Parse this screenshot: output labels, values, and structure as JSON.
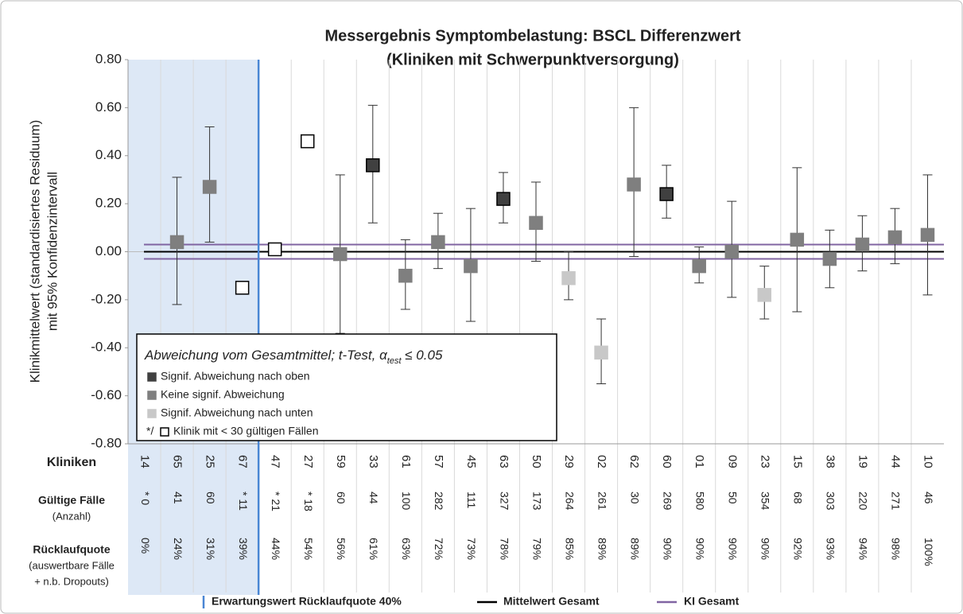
{
  "chart_data": {
    "type": "errorbar",
    "title": "Messergebnis Symptombelastung: BSCL Differenzwert",
    "subtitle": "(Kliniken mit Schwerpunktversorgung)",
    "y_label": [
      "Klinikmittelwert (standardisiertes Residuum)",
      "mit 95% Konfidenzintervall"
    ],
    "ylim": [
      -0.8,
      0.8
    ],
    "yticks": [
      {
        "value": -0.8,
        "label": "-0.80"
      },
      {
        "value": -0.6,
        "label": "-0.60"
      },
      {
        "value": -0.4,
        "label": "-0.40"
      },
      {
        "value": -0.2,
        "label": "-0.20"
      },
      {
        "value": 0,
        "label": "0.00"
      },
      {
        "value": 0.2,
        "label": "0.20"
      },
      {
        "value": 0.4,
        "label": "0.40"
      },
      {
        "value": 0.6,
        "label": "0.60"
      },
      {
        "value": 0.8,
        "label": "0.80"
      }
    ],
    "grid": true,
    "row_headers": {
      "clinics": "Kliniken",
      "cases": [
        "Gültige Fälle",
        "(Anzahl)"
      ],
      "rate": [
        "Rücklaufquote",
        "(auswertbare Fälle",
        "+ n.b. Dropouts)"
      ]
    },
    "categories": [
      "14",
      "65",
      "25",
      "67",
      "47",
      "27",
      "59",
      "33",
      "61",
      "57",
      "45",
      "63",
      "50",
      "29",
      "02",
      "62",
      "60",
      "01",
      "09",
      "23",
      "15",
      "38",
      "19",
      "44",
      "10"
    ],
    "cases": [
      "* 0",
      "41",
      "60",
      "* 11",
      "* 21",
      "* 18",
      "60",
      "44",
      "100",
      "282",
      "111",
      "327",
      "173",
      "264",
      "261",
      "30",
      "269",
      "580",
      "50",
      "354",
      "68",
      "303",
      "220",
      "271",
      "46"
    ],
    "rates": [
      "0%",
      "24%",
      "31%",
      "39%",
      "44%",
      "54%",
      "56%",
      "61%",
      "63%",
      "72%",
      "73%",
      "78%",
      "79%",
      "85%",
      "89%",
      "89%",
      "90%",
      "90%",
      "90%",
      "90%",
      "92%",
      "93%",
      "94%",
      "98%",
      "100%"
    ],
    "legend_title": {
      "text": "Abweichung vom Gesamtmittel;  t-Test, α",
      "sub": "test",
      "tail": " ≤ 0.05"
    },
    "legend_prefix": "*/",
    "series": [
      {
        "name": "Signif. Abweichung nach oben",
        "color": "#404040",
        "values": [
          null,
          null,
          null,
          null,
          null,
          null,
          null,
          0.36,
          null,
          null,
          null,
          0.22,
          null,
          null,
          null,
          null,
          0.24,
          null,
          null,
          null,
          null,
          null,
          null,
          null,
          null
        ],
        "low": [
          null,
          null,
          null,
          null,
          null,
          null,
          null,
          0.12,
          null,
          null,
          null,
          0.12,
          null,
          null,
          null,
          null,
          0.14,
          null,
          null,
          null,
          null,
          null,
          null,
          null,
          null
        ],
        "high": [
          null,
          null,
          null,
          null,
          null,
          null,
          null,
          0.61,
          null,
          null,
          null,
          0.33,
          null,
          null,
          null,
          null,
          0.36,
          null,
          null,
          null,
          null,
          null,
          null,
          null,
          null
        ]
      },
      {
        "name": "Keine signif. Abweichung",
        "color": "#7f7f7f",
        "values": [
          null,
          0.04,
          0.27,
          null,
          null,
          null,
          -0.01,
          null,
          -0.1,
          0.04,
          -0.06,
          null,
          0.12,
          null,
          null,
          0.28,
          null,
          -0.06,
          0.0,
          null,
          0.05,
          -0.03,
          0.03,
          0.06,
          0.07
        ],
        "low": [
          null,
          -0.22,
          0.04,
          null,
          null,
          null,
          -0.34,
          null,
          -0.24,
          -0.07,
          -0.29,
          null,
          -0.04,
          null,
          null,
          -0.02,
          null,
          -0.13,
          -0.19,
          null,
          -0.25,
          -0.15,
          -0.08,
          -0.05,
          -0.18
        ],
        "high": [
          null,
          0.31,
          0.52,
          null,
          null,
          null,
          0.32,
          null,
          0.05,
          0.16,
          0.18,
          null,
          0.29,
          null,
          null,
          0.6,
          null,
          0.02,
          0.21,
          null,
          0.35,
          0.09,
          0.15,
          0.18,
          0.32
        ]
      },
      {
        "name": "Signif. Abweichung nach unten",
        "color": "#c8c8c8",
        "values": [
          null,
          null,
          null,
          null,
          null,
          null,
          null,
          null,
          null,
          null,
          null,
          null,
          null,
          -0.11,
          -0.42,
          null,
          null,
          null,
          null,
          -0.18,
          null,
          null,
          null,
          null,
          null
        ],
        "low": [
          null,
          null,
          null,
          null,
          null,
          null,
          null,
          null,
          null,
          null,
          null,
          null,
          null,
          -0.2,
          -0.55,
          null,
          null,
          null,
          null,
          -0.28,
          null,
          null,
          null,
          null,
          null
        ],
        "high": [
          null,
          null,
          null,
          null,
          null,
          null,
          null,
          null,
          null,
          null,
          null,
          null,
          null,
          0.0,
          -0.28,
          null,
          null,
          null,
          null,
          -0.06,
          null,
          null,
          null,
          null,
          null
        ]
      },
      {
        "name": "Klinik mit < 30 gültigen Fällen",
        "color": "#ffffff",
        "values": [
          null,
          null,
          null,
          -0.15,
          0.01,
          0.46,
          null,
          null,
          null,
          null,
          null,
          null,
          null,
          null,
          null,
          null,
          null,
          null,
          null,
          null,
          null,
          null,
          null,
          null,
          null
        ]
      }
    ],
    "mean_line": {
      "name": "Mittelwert Gesamt",
      "value": 0,
      "color": "#000000"
    },
    "ci_lines": {
      "name": "KI Gesamt",
      "values": [
        -0.03,
        0.03
      ],
      "color": "#8064a2"
    },
    "expectation_line": {
      "name": "Erwartungswert Rücklaufquote 40%",
      "color": "#4a86d4"
    }
  }
}
